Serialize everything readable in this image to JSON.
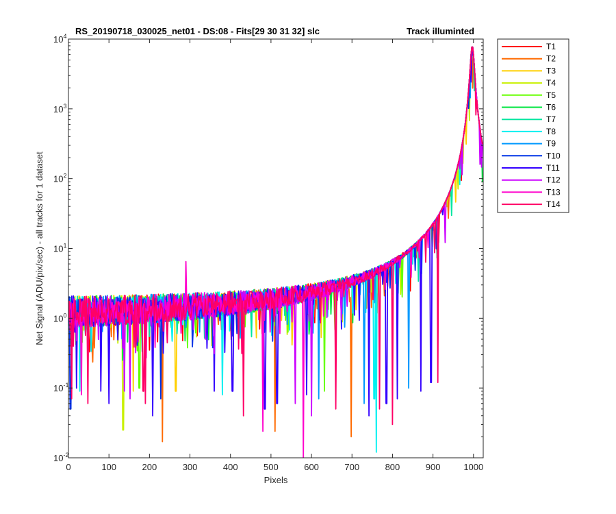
{
  "chart_data": {
    "type": "line",
    "title": "RS_20190718_030025_net01 - DS:08 - Fits[29  30  31  32]   slc",
    "subtitle": "Track illuminted",
    "xlabel": "Pixels",
    "ylabel": "Net Signal (ADU/pix/sec) - all tracks for 1 dataset",
    "xlim": [
      0,
      1024
    ],
    "ylim": [
      0.01,
      10000
    ],
    "yscale": "log",
    "grid": false,
    "legend_position": "outside-top-right",
    "x_ticks": [
      "0",
      "100",
      "200",
      "300",
      "400",
      "500",
      "600",
      "700",
      "800",
      "900",
      "1000"
    ],
    "y_ticks": [
      {
        "base": "10",
        "exp": "-2"
      },
      {
        "base": "10",
        "exp": "-1"
      },
      {
        "base": "10",
        "exp": "0"
      },
      {
        "base": "10",
        "exp": "1"
      },
      {
        "base": "10",
        "exp": "2"
      },
      {
        "base": "10",
        "exp": "3"
      },
      {
        "base": "10",
        "exp": "4"
      }
    ],
    "baseline_level": 1.0,
    "peak": {
      "x": 997,
      "y": 8000
    },
    "series": [
      {
        "name": "T1",
        "color": "#ff0000",
        "seed": 11
      },
      {
        "name": "T2",
        "color": "#ff6a00",
        "seed": 23
      },
      {
        "name": "T3",
        "color": "#ffd000",
        "seed": 37
      },
      {
        "name": "T4",
        "color": "#c8f000",
        "seed": 41
      },
      {
        "name": "T5",
        "color": "#66ff00",
        "seed": 53
      },
      {
        "name": "T6",
        "color": "#00e640",
        "seed": 67
      },
      {
        "name": "T7",
        "color": "#00e6a0",
        "seed": 71
      },
      {
        "name": "T8",
        "color": "#00f0f0",
        "seed": 83
      },
      {
        "name": "T9",
        "color": "#0099ff",
        "seed": 97
      },
      {
        "name": "T10",
        "color": "#0033e6",
        "seed": 101
      },
      {
        "name": "T11",
        "color": "#3300ff",
        "seed": 113
      },
      {
        "name": "T12",
        "color": "#cc00ff",
        "seed": 127
      },
      {
        "name": "T13",
        "color": "#ff00cc",
        "seed": 131
      },
      {
        "name": "T14",
        "color": "#ff0066",
        "seed": 149
      }
    ],
    "spikes": [
      {
        "x": 5,
        "y": 0.05,
        "series": "T10"
      },
      {
        "x": 8,
        "y": 0.07,
        "series": "T14"
      },
      {
        "x": 20,
        "y": 0.1,
        "series": "T11"
      },
      {
        "x": 28,
        "y": 0.09,
        "series": "T8"
      },
      {
        "x": 32,
        "y": 0.08,
        "series": "T13"
      },
      {
        "x": 48,
        "y": 0.06,
        "series": "T14"
      },
      {
        "x": 80,
        "y": 0.09,
        "series": "T11"
      },
      {
        "x": 100,
        "y": 0.06,
        "series": "T11"
      },
      {
        "x": 135,
        "y": 0.025,
        "series": "T4"
      },
      {
        "x": 138,
        "y": 0.09,
        "series": "T12"
      },
      {
        "x": 152,
        "y": 0.07,
        "series": "T12"
      },
      {
        "x": 160,
        "y": 0.09,
        "series": "T3"
      },
      {
        "x": 175,
        "y": 0.1,
        "series": "T5"
      },
      {
        "x": 185,
        "y": 0.09,
        "series": "T14"
      },
      {
        "x": 190,
        "y": 0.06,
        "series": "T14"
      },
      {
        "x": 208,
        "y": 0.04,
        "series": "T11"
      },
      {
        "x": 228,
        "y": 0.07,
        "series": "T10"
      },
      {
        "x": 232,
        "y": 0.017,
        "series": "T2"
      },
      {
        "x": 265,
        "y": 0.09,
        "series": "T3"
      },
      {
        "x": 290,
        "y": 6.5,
        "series": "T13"
      },
      {
        "x": 360,
        "y": 0.09,
        "series": "T11"
      },
      {
        "x": 380,
        "y": 0.08,
        "series": "T8"
      },
      {
        "x": 405,
        "y": 0.09,
        "series": "T11"
      },
      {
        "x": 432,
        "y": 0.04,
        "series": "T14"
      },
      {
        "x": 480,
        "y": 0.024,
        "series": "T13"
      },
      {
        "x": 485,
        "y": 0.05,
        "series": "T11"
      },
      {
        "x": 510,
        "y": 0.024,
        "series": "T2"
      },
      {
        "x": 515,
        "y": 0.06,
        "series": "T11"
      },
      {
        "x": 560,
        "y": 0.06,
        "series": "T12"
      },
      {
        "x": 580,
        "y": 0.01,
        "series": "T13"
      },
      {
        "x": 588,
        "y": 0.08,
        "series": "T11"
      },
      {
        "x": 600,
        "y": 0.04,
        "series": "T12"
      },
      {
        "x": 618,
        "y": 0.07,
        "series": "T9"
      },
      {
        "x": 632,
        "y": 0.09,
        "series": "T5"
      },
      {
        "x": 660,
        "y": 0.05,
        "series": "T14"
      },
      {
        "x": 698,
        "y": 0.02,
        "series": "T2"
      },
      {
        "x": 730,
        "y": 0.06,
        "series": "T9"
      },
      {
        "x": 742,
        "y": 0.04,
        "series": "T11"
      },
      {
        "x": 755,
        "y": 0.07,
        "series": "T8"
      },
      {
        "x": 760,
        "y": 0.012,
        "series": "T8"
      },
      {
        "x": 768,
        "y": 0.05,
        "series": "T14"
      },
      {
        "x": 785,
        "y": 0.06,
        "series": "T11"
      },
      {
        "x": 800,
        "y": 0.03,
        "series": "T14"
      },
      {
        "x": 812,
        "y": 0.07,
        "series": "T11"
      },
      {
        "x": 840,
        "y": 0.1,
        "series": "T9"
      },
      {
        "x": 870,
        "y": 0.09,
        "series": "T11"
      },
      {
        "x": 895,
        "y": 0.12,
        "series": "T11"
      },
      {
        "x": 912,
        "y": 0.12,
        "series": "T14"
      }
    ]
  }
}
